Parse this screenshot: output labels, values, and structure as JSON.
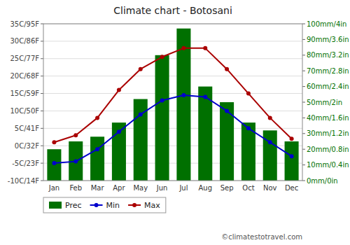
{
  "chart_data": {
    "type": "line",
    "title": "Climate chart - Botosani",
    "categories": [
      "Jan",
      "Feb",
      "Mar",
      "Apr",
      "May",
      "Jun",
      "Jul",
      "Aug",
      "Sep",
      "Oct",
      "Nov",
      "Dec"
    ],
    "series": [
      {
        "name": "Prec",
        "type": "bar",
        "axis": "y2",
        "color": "#007000",
        "values": [
          20,
          25,
          28,
          37,
          52,
          80,
          97,
          60,
          50,
          37,
          32,
          25
        ]
      },
      {
        "name": "Min",
        "type": "line",
        "marker": "circle",
        "color": "#0000cc",
        "values": [
          -5,
          -4.5,
          -1,
          4,
          9,
          13,
          14.5,
          14,
          10,
          5,
          1,
          -3
        ]
      },
      {
        "name": "Max",
        "type": "line",
        "marker": "circle",
        "color": "#aa0000",
        "values": [
          1,
          3,
          8,
          16,
          22,
          25.5,
          28,
          28,
          22,
          15,
          8,
          2
        ]
      }
    ],
    "ylim": [
      -10,
      35
    ],
    "yticks": [
      {
        "value": -10,
        "label": "-10C/14F"
      },
      {
        "value": -5,
        "label": "-5C/23F"
      },
      {
        "value": 0,
        "label": "0C/32F"
      },
      {
        "value": 5,
        "label": "5C/41F"
      },
      {
        "value": 10,
        "label": "10C/50F"
      },
      {
        "value": 15,
        "label": "15C/59F"
      },
      {
        "value": 20,
        "label": "20C/68F"
      },
      {
        "value": 25,
        "label": "25C/77F"
      },
      {
        "value": 30,
        "label": "30C/86F"
      },
      {
        "value": 35,
        "label": "35C/95F"
      }
    ],
    "y2lim": [
      0,
      100
    ],
    "y2ticks": [
      {
        "value": 0,
        "label": "0mm/0in"
      },
      {
        "value": 10,
        "label": "10mm/0.4in"
      },
      {
        "value": 20,
        "label": "20mm/0.8in"
      },
      {
        "value": 30,
        "label": "30mm/1.2in"
      },
      {
        "value": 40,
        "label": "40mm/1.6in"
      },
      {
        "value": 50,
        "label": "50mm/2in"
      },
      {
        "value": 60,
        "label": "60mm/2.4in"
      },
      {
        "value": 70,
        "label": "70mm/2.8in"
      },
      {
        "value": 80,
        "label": "80mm/3.2in"
      },
      {
        "value": 90,
        "label": "90mm/3.6in"
      },
      {
        "value": 100,
        "label": "100mm/4in"
      }
    ],
    "grid": true,
    "legend": "bottom",
    "annotations": [
      "©climatestotravel.com"
    ]
  }
}
